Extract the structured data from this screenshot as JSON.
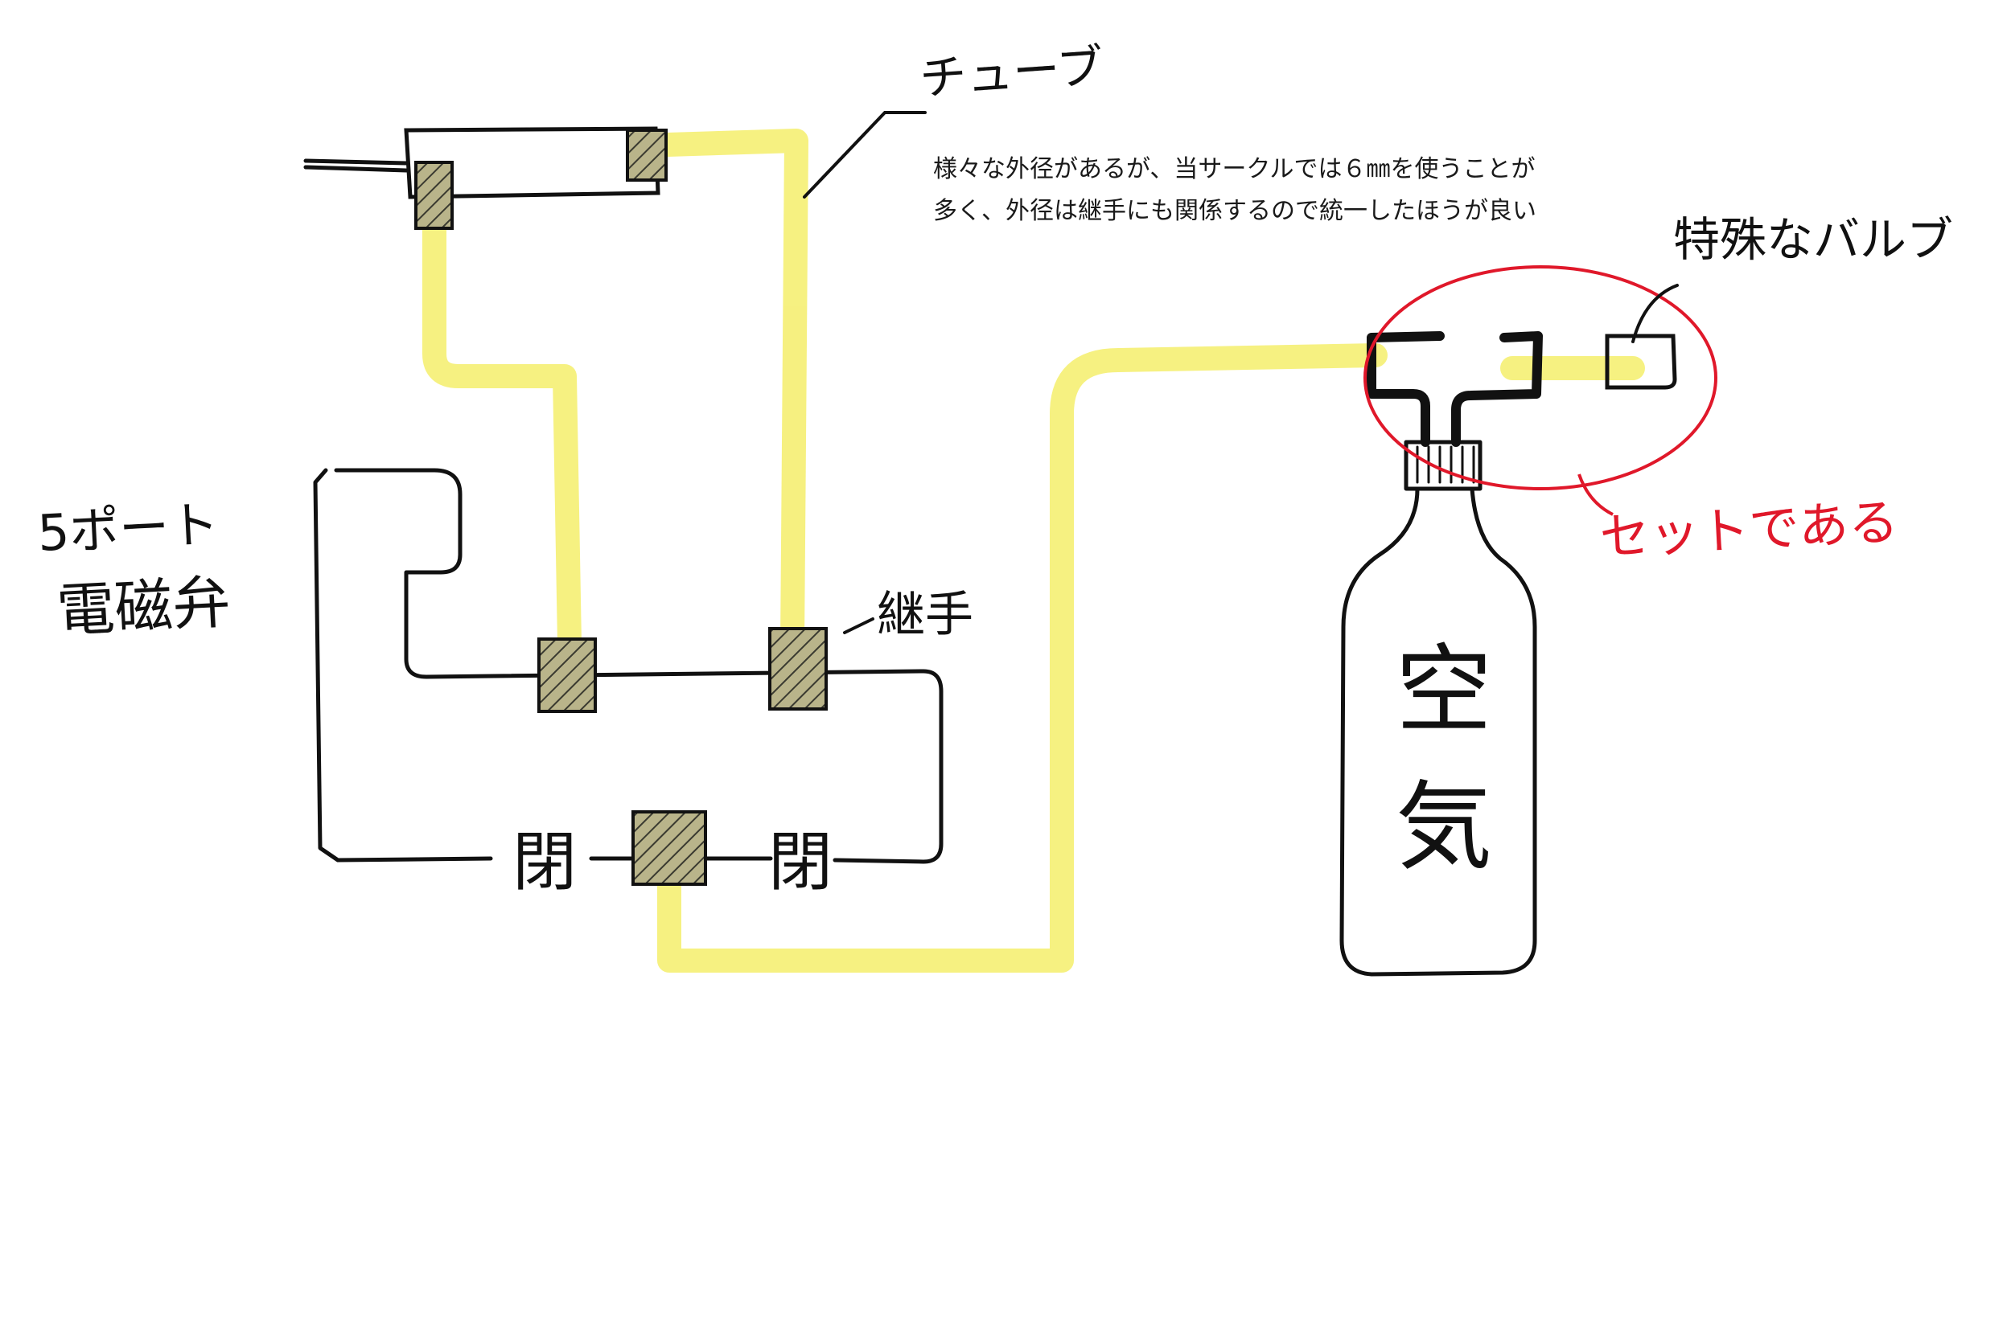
{
  "labels": {
    "tube": "チューブ",
    "note_line1": "様々な外径があるが、当サークルでは６㎜を使うことが",
    "note_line2": "多く、外径は継手にも関係するので統一したほうが良い",
    "special_valve": "特殊なバルブ",
    "solenoid_line1": "5ポート",
    "solenoid_line2": "電磁弁",
    "joint": "継手",
    "closed_left": "閉",
    "closed_right": "閉",
    "set_note": "セットである",
    "air_line1": "空",
    "air_line2": "気"
  },
  "colors": {
    "tube_highlight": "#f6f07a",
    "ink": "#111111",
    "red_circle": "#e0182a",
    "fitting_fill": "#9a9a8a"
  },
  "icons": {
    "fitting": "hatched-square-fitting",
    "bottle": "air-bottle",
    "cylinder": "air-cylinder"
  }
}
